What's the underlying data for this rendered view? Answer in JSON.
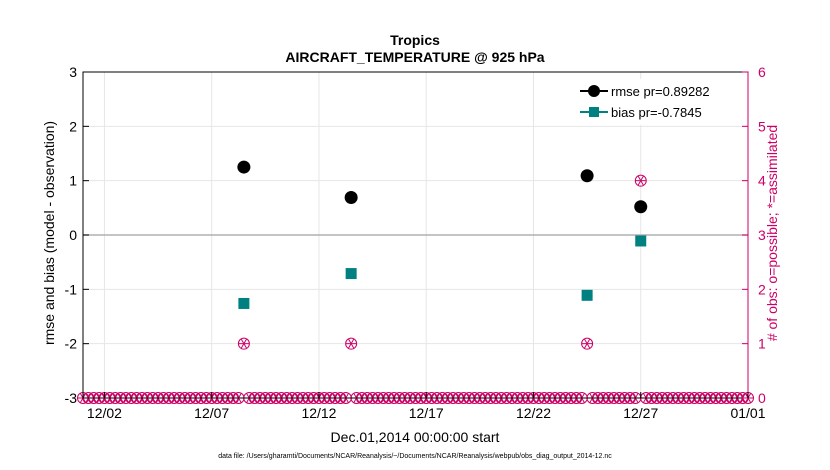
{
  "chart_data": {
    "type": "scatter",
    "title": "Tropics",
    "subtitle": "AIRCRAFT_TEMPERATURE @ 925 hPa",
    "xlabel": "Dec.01,2014 00:00:00 start",
    "ylabel": "rmse and bias (model - observation)",
    "y2label": "# of obs: o=possible; *=assimilated",
    "footnote": "data file: /Users/gharamti/Documents/NCAR/Reanalysis/~/Documents/NCAR/Reanalysis/webpub/obs_diag_output_2014-12.nc",
    "xlim": [
      0,
      31
    ],
    "ylim": [
      -3,
      3
    ],
    "y2lim": [
      0,
      6
    ],
    "x_ticks": [
      1,
      6,
      11,
      16,
      21,
      26,
      31
    ],
    "x_tick_labels": [
      "12/02",
      "12/07",
      "12/12",
      "12/17",
      "12/22",
      "12/27",
      "01/01"
    ],
    "y_ticks": [
      -3,
      -2,
      -1,
      0,
      1,
      2,
      3
    ],
    "y_tick_labels": [
      "-3",
      "-2",
      "-1",
      "0",
      "1",
      "2",
      "3"
    ],
    "y2_ticks": [
      0,
      1,
      2,
      3,
      4,
      5,
      6
    ],
    "y2_tick_labels": [
      "0",
      "1",
      "2",
      "3",
      "4",
      "5",
      "6"
    ],
    "series": [
      {
        "name": "rmse pr=0.89282",
        "color": "#000000",
        "marker": "circle",
        "x": [
          7.5,
          12.5,
          23.5,
          26
        ],
        "values": [
          1.25,
          0.69,
          1.09,
          0.52
        ]
      },
      {
        "name": "bias pr=-0.7845",
        "color": "#008080",
        "marker": "square",
        "x": [
          7.5,
          12.5,
          23.5,
          26
        ],
        "values": [
          -1.26,
          -0.71,
          -1.11,
          -0.11
        ]
      }
    ],
    "obs_counts": {
      "color": "#cc0066",
      "x": [
        7.5,
        12.5,
        23.5,
        26
      ],
      "possible": [
        1,
        1,
        1,
        4
      ],
      "assimilated": [
        1,
        1,
        1,
        4
      ],
      "zero_spacing_days": 0.25
    },
    "zero_line_color": "#b0b0b0"
  }
}
